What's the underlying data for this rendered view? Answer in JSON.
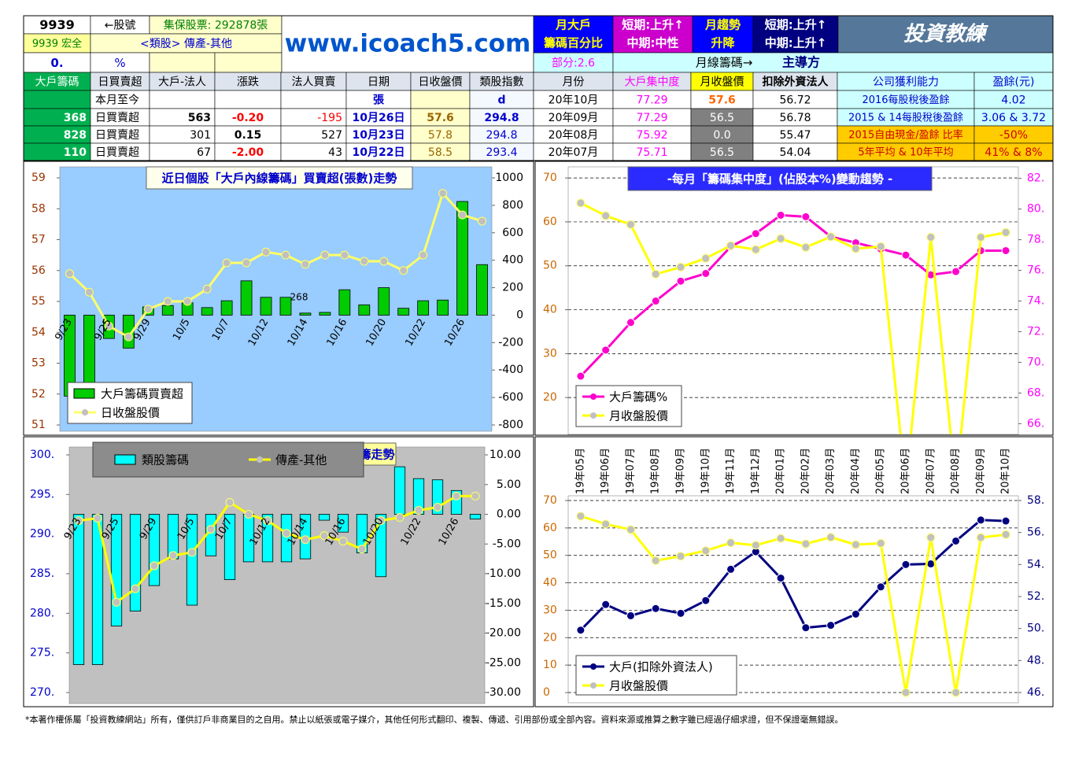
{
  "header": {
    "stock_id": "9939",
    "stock_hint": "←股號",
    "shares": "集保股票: 292878張",
    "stock_name": "9939 宏全",
    "sector": "<類股> 傳產-其他",
    "zero": "0.",
    "percent": "%",
    "site": "www.icoach5.com",
    "partial": "部分:2.6",
    "monthly_chips": "月線籌碼→",
    "dominant": "主導方",
    "box1": [
      "月大戶",
      "籌碼百分比"
    ],
    "box2": [
      "短期:上升↑",
      "中期:中性"
    ],
    "box3": [
      "月趨勢",
      "升降"
    ],
    "box4": [
      "短期:上升↑",
      "中期:上升↑"
    ],
    "logo": "投資教練"
  },
  "table": {
    "columns": [
      "大戶籌碼",
      "日買賣超",
      "大戶-法人",
      "漲跌",
      "法人買賣",
      "日期",
      "日收盤價",
      "類股指數",
      "月份",
      "大戶集中度",
      "月收盤價",
      "扣除外資法人",
      "公司獲利能力",
      "盈餘(元)"
    ],
    "rows": [
      [
        null,
        "本月至今",
        null,
        null,
        null,
        "張",
        null,
        "d",
        "20年10月",
        "77.29",
        "57.6",
        "56.72",
        "2016每股稅後盈餘",
        "4.02"
      ],
      [
        "368",
        "日買賣超",
        "563",
        "-0.20",
        "-195",
        "10月26日",
        "57.6",
        "294.8",
        "20年09月",
        "77.29",
        "56.5",
        "56.78",
        "2015 & 14每股稅後盈餘",
        "3.06 & 3.72"
      ],
      [
        "828",
        "日買賣超",
        "301",
        "0.15",
        "527",
        "10月23日",
        "57.8",
        "294.8",
        "20年08月",
        "75.92",
        "0.0",
        "55.47",
        "2015自由現金/盈餘 比率",
        "-50%"
      ],
      [
        "110",
        "日買賣超",
        "67",
        "-2.00",
        "43",
        "10月22日",
        "58.5",
        "293.4",
        "20年07月",
        "75.71",
        "56.5",
        "54.04",
        "5年平均 & 10年平均",
        "41% & 8%"
      ]
    ]
  },
  "chart_data": [
    {
      "type": "combo",
      "title": "近日個股「大戶內線籌碼」買賣超(張數)走勢",
      "annotation": "268",
      "categories": [
        "9/23",
        null,
        "9/25",
        null,
        "9/29",
        null,
        "10/5",
        null,
        "10/7",
        null,
        "10/12",
        null,
        "10/14",
        null,
        "10/16",
        null,
        "10/20",
        null,
        "10/22",
        null,
        "10/26",
        null
      ],
      "ylim": [
        51,
        59
      ],
      "yticks": [
        51,
        52,
        53,
        54,
        55,
        56,
        57,
        58,
        59
      ],
      "y2lim": [
        -800,
        1000
      ],
      "y2ticks": [
        -800,
        -600,
        -400,
        -200,
        0,
        200,
        400,
        600,
        800,
        1000
      ],
      "grid": false,
      "legend": "lower left",
      "series": [
        {
          "name": "大戶籌碼買賣超",
          "type": "bar",
          "axis": "y2",
          "color": "#00cc00",
          "values": [
            -590,
            -530,
            -170,
            -240,
            60,
            70,
            90,
            55,
            105,
            250,
            130,
            130,
            15,
            20,
            185,
            75,
            200,
            50,
            105,
            110,
            828,
            368
          ]
        },
        {
          "name": "日收盤股價",
          "type": "line",
          "axis": "y",
          "color": "#ffff66",
          "values": [
            55.9,
            55.3,
            54.2,
            53.85,
            54.75,
            55.0,
            55.0,
            55.4,
            56.25,
            56.25,
            56.6,
            56.5,
            56.2,
            56.5,
            56.5,
            56.3,
            56.3,
            56.0,
            56.5,
            58.5,
            57.8,
            57.6
          ]
        }
      ]
    },
    {
      "type": "combo",
      "title": "-每月「籌碼集中度」(佔股本%)變動趨勢 -",
      "categories": [
        null,
        null,
        null,
        null,
        null,
        null,
        null,
        null,
        null,
        null,
        null,
        null,
        null,
        null,
        null,
        null,
        null,
        null
      ],
      "ylim": [
        11.6,
        72
      ],
      "yticks": [
        20,
        30,
        40,
        50,
        60,
        70
      ],
      "y2lim": [
        65.3,
        82.6
      ],
      "y2ticks": [
        {
          "value": 66,
          "label": "66."
        },
        {
          "value": 68,
          "label": "68."
        },
        {
          "value": 70,
          "label": "70."
        },
        {
          "value": 72,
          "label": "72."
        },
        {
          "value": 74,
          "label": "74."
        },
        {
          "value": 76,
          "label": "76."
        },
        {
          "value": 78,
          "label": "78."
        },
        {
          "value": 80,
          "label": "80."
        },
        {
          "value": 82,
          "label": "82."
        }
      ],
      "grid": true,
      "legend": "lower left",
      "series": [
        {
          "name": "大戶籌碼%",
          "type": "line",
          "axis": "y2",
          "color": "#ff00cc",
          "values": [
            69.1,
            70.8,
            72.6,
            74.0,
            75.3,
            75.8,
            77.55,
            78.4,
            79.6,
            79.5,
            78.2,
            77.8,
            77.4,
            77.0,
            75.71,
            75.92,
            77.29,
            77.29
          ]
        },
        {
          "name": "月收盤股價",
          "type": "line",
          "axis": "y",
          "color": "#ffff00",
          "values": [
            64.3,
            61.4,
            59.4,
            48.1,
            49.7,
            51.7,
            54.6,
            53.7,
            56.2,
            54.2,
            56.6,
            53.9,
            54.4,
            0,
            56.5,
            0,
            56.5,
            57.6
          ]
        }
      ]
    },
    {
      "type": "combo",
      "title": "籌走勢",
      "categories": [
        "9/23",
        null,
        "9/25",
        null,
        "9/29",
        null,
        "10/5",
        null,
        "10/7",
        null,
        "10/12",
        null,
        "10/14",
        null,
        "10/16",
        null,
        "10/20",
        null,
        "10/22",
        null,
        "10/26",
        null
      ],
      "ylim": [
        270,
        300
      ],
      "yticks": [
        {
          "value": 270,
          "label": "270."
        },
        {
          "value": 275,
          "label": "275."
        },
        {
          "value": 280,
          "label": "280."
        },
        {
          "value": 285,
          "label": "285."
        },
        {
          "value": 290,
          "label": "290."
        },
        {
          "value": 295,
          "label": "295."
        },
        {
          "value": 300,
          "label": "300."
        }
      ],
      "y2lim": [
        -30,
        10
      ],
      "y2ticks": [
        {
          "value": -30,
          "label": "-30.00"
        },
        {
          "value": -25,
          "label": "-25.00"
        },
        {
          "value": -20,
          "label": "-20.00"
        },
        {
          "value": -15,
          "label": "-15.00"
        },
        {
          "value": -10,
          "label": "-10.00"
        },
        {
          "value": -5,
          "label": "-5.00"
        },
        {
          "value": 0,
          "label": "0.00"
        },
        {
          "value": 5,
          "label": "5.00"
        },
        {
          "value": 10,
          "label": "10.00"
        }
      ],
      "grid": false,
      "legend": "upper left",
      "series": [
        {
          "name": "類股籌碼",
          "type": "bar",
          "axis": "y2",
          "color": "#00ffff",
          "values": [
            -25.3,
            -25.3,
            -18.8,
            -16.3,
            -12.0,
            -7.5,
            -15.3,
            -7.0,
            -11.0,
            -8.0,
            -8.0,
            -8.0,
            -7.5,
            -1.0,
            -3.0,
            -6.5,
            -10.5,
            8.0,
            6.0,
            5.8,
            4.0,
            -0.8
          ]
        },
        {
          "name": "傳產-其他",
          "type": "line",
          "axis": "y",
          "color": "#ffff00",
          "values": [
            291.7,
            292.0,
            281.4,
            283.1,
            286.0,
            287.3,
            287.7,
            290.6,
            294.0,
            292.5,
            291.7,
            290.1,
            289.3,
            289.8,
            289.1,
            288.1,
            291.7,
            292.1,
            293.0,
            293.4,
            294.8,
            294.8
          ]
        }
      ]
    },
    {
      "type": "combo",
      "categories": [
        "19年05月",
        "19年06月",
        "19年07月",
        "19年08月",
        "19年09月",
        "19年10月",
        "19年11月",
        "19年12月",
        "20年01月",
        "20年02月",
        "20年03月",
        "20年04月",
        "20年05月",
        "20年06月",
        "20年07月",
        "20年08月",
        "20年09月",
        "20年10月"
      ],
      "ylim": [
        0,
        70
      ],
      "yticks": [
        0,
        10,
        20,
        30,
        40,
        50,
        60,
        70
      ],
      "y2lim": [
        46,
        58
      ],
      "y2ticks": [
        {
          "value": 46,
          "label": "46."
        },
        {
          "value": 48,
          "label": "48."
        },
        {
          "value": 50,
          "label": "50."
        },
        {
          "value": 52,
          "label": "52."
        },
        {
          "value": 54,
          "label": "54."
        },
        {
          "value": 56,
          "label": "56."
        },
        {
          "value": 58,
          "label": "58."
        }
      ],
      "grid": true,
      "legend": "lower left",
      "series": [
        {
          "name": "大戶(扣除外資法人)",
          "type": "line",
          "axis": "y2",
          "color": "#000080",
          "values": [
            49.9,
            51.5,
            50.8,
            51.25,
            50.95,
            51.75,
            53.7,
            54.8,
            53.15,
            50.05,
            50.2,
            50.9,
            52.6,
            54.0,
            54.04,
            55.47,
            56.78,
            56.72
          ]
        },
        {
          "name": "月收盤股價",
          "type": "line",
          "axis": "y",
          "color": "#ffff00",
          "values": [
            64.3,
            61.4,
            59.4,
            48.1,
            49.7,
            51.7,
            54.6,
            53.7,
            56.2,
            54.2,
            56.6,
            53.9,
            54.4,
            0,
            56.5,
            0,
            56.5,
            57.6
          ]
        }
      ]
    }
  ],
  "footer": "*本著作權係屬「投資教練網站」所有，僅供訂戶非商業目的之自用。禁止以紙張或電子媒介，其他任何形式翻印、複製、傳遞、引用部份或全部內容。資料來源或推算之數字雖已經過仔細求證，但不保證毫無錯誤。"
}
